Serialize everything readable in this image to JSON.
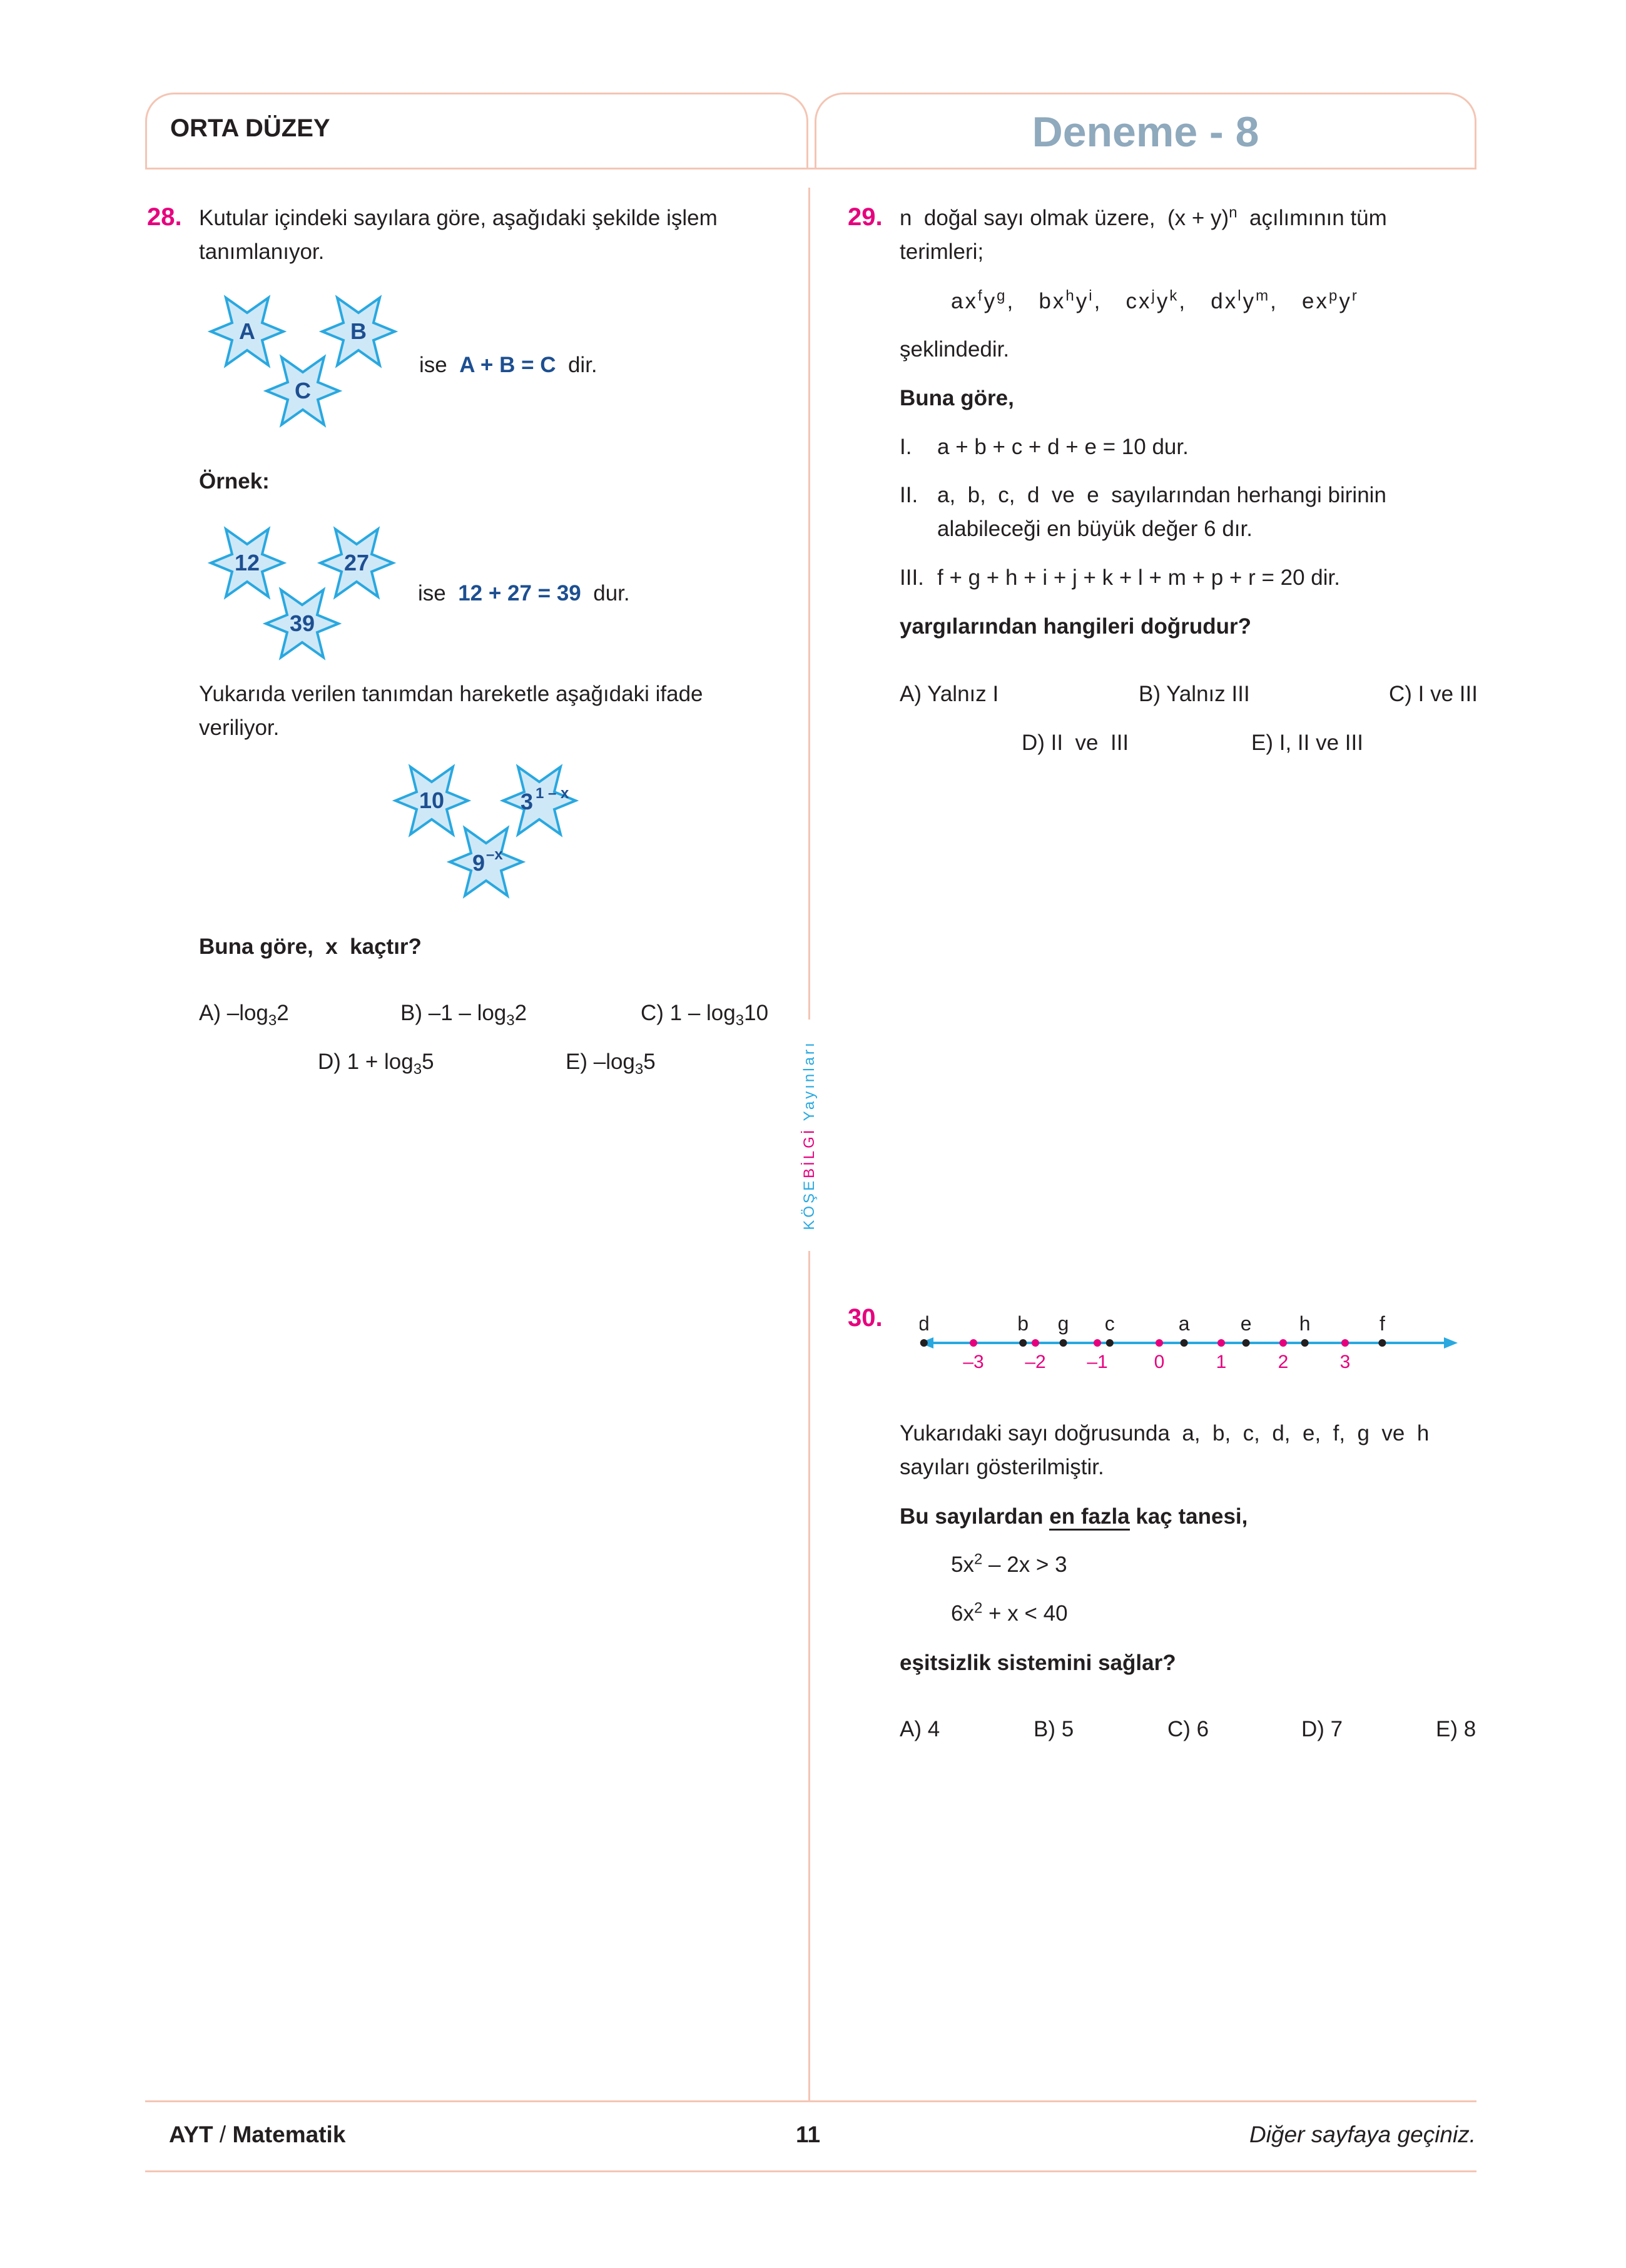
{
  "header": {
    "level": "ORTA DÜZEY",
    "title": "Deneme - 8"
  },
  "publisher": {
    "brand_a": "KÖŞE",
    "brand_b": "BİLGİ",
    "brand_c": " Yayınları"
  },
  "q28": {
    "number": "28.",
    "intro_line1": "Kutular içindeki sayılara göre, aşağıdaki şekilde işlem",
    "intro_line2": "tanımlanıyor.",
    "def_stars": [
      "A",
      "B",
      "C"
    ],
    "def_ise": "ise",
    "def_eq": "A + B = C",
    "def_dir": "dir.",
    "ornek": "Örnek:",
    "ex_stars": [
      "12",
      "27",
      "39"
    ],
    "ex_ise": "ise",
    "ex_eq": "12 + 27 = 39",
    "ex_dur": "dur.",
    "text_line1": "Yukarıda verilen tanımdan hareketle aşağıdaki ifade",
    "text_line2": "veriliyor.",
    "q_star_a": "10",
    "q_star_b_base": "3",
    "q_star_b_exp": "1 – x",
    "q_star_c_base": "9",
    "q_star_c_exp": "–x",
    "question": "Buna göre,  x  kaçtır?",
    "options": {
      "A_pre": "A) –log",
      "A_sub": "3",
      "A_post": "2",
      "B_pre": "B) –1 – log",
      "B_sub": "3",
      "B_post": "2",
      "C_pre": "C) 1 – log",
      "C_sub": "3",
      "C_post": "10",
      "D_pre": "D) 1 + log",
      "D_sub": "3",
      "D_post": "5",
      "E_pre": "E) –log",
      "E_sub": "3",
      "E_post": "5"
    }
  },
  "q29": {
    "number": "29.",
    "line1_pre": "n  doğal sayı olmak üzere,  (x + y)",
    "line1_sup": "n",
    "line1_post": "  açılımının tüm",
    "line2": "terimleri;",
    "terms": [
      {
        "c": "ax",
        "e1": "f",
        "v": "y",
        "e2": "g"
      },
      {
        "c": "bx",
        "e1": "h",
        "v": "y",
        "e2": "i"
      },
      {
        "c": "cx",
        "e1": "j",
        "v": "y",
        "e2": "k"
      },
      {
        "c": "dx",
        "e1": "l",
        "v": "y",
        "e2": "m"
      },
      {
        "c": "ex",
        "e1": "p",
        "v": "y",
        "e2": "r"
      }
    ],
    "seklinde": "şeklindedir.",
    "buna_gore": "Buna göre,",
    "s1_num": "I.",
    "s1": "a + b + c + d + e = 10  dur.",
    "s2_num": "II.",
    "s2_l1": "a,  b,  c,  d  ve  e  sayılarından herhangi birinin",
    "s2_l2": "alabileceği en büyük değer 6 dır.",
    "s3_num": "III.",
    "s3": "f + g + h + i + j + k + l + m + p + r = 20  dir.",
    "question": "yargılarından hangileri doğrudur?",
    "options": {
      "A": "A) Yalnız I",
      "B": "B) Yalnız III",
      "C": "C) I ve III",
      "D": "D) II  ve  III",
      "E": "E) I, II ve III"
    }
  },
  "q30": {
    "number": "30.",
    "numberline": {
      "letters": [
        {
          "label": "d",
          "value": -3.8
        },
        {
          "label": "b",
          "value": -2.2
        },
        {
          "label": "g",
          "value": -1.55
        },
        {
          "label": "c",
          "value": -0.8
        },
        {
          "label": "a",
          "value": 0.4
        },
        {
          "label": "e",
          "value": 1.4
        },
        {
          "label": "h",
          "value": 2.35
        },
        {
          "label": "f",
          "value": 3.6
        }
      ],
      "ticks": [
        "–3",
        "–2",
        "–1",
        "0",
        "1",
        "2",
        "3"
      ],
      "tick_values": [
        -3,
        -2,
        -1,
        0,
        1,
        2,
        3
      ],
      "axis_color": "#29a8e0",
      "tick_color": "#e6007e"
    },
    "text_line1": "Yukarıdaki sayı doğrusunda  a,  b,  c,  d,  e,  f,  g  ve  h",
    "text_line2": "sayıları gösterilmiştir.",
    "q_pre": "Bu sayılardan ",
    "q_ul": "en fazla",
    "q_post": " kaç tanesi,",
    "ineq1_a": "5x",
    "ineq1_sup": "2",
    "ineq1_b": " – 2x > 3",
    "ineq2_a": "6x",
    "ineq2_sup": "2",
    "ineq2_b": " + x < 40",
    "question": "eşitsizlik sistemini sağlar?",
    "options": {
      "A": "A) 4",
      "B": "B) 5",
      "C": "C) 6",
      "D": "D) 7",
      "E": "E) 8"
    }
  },
  "footer": {
    "left_a": "AYT",
    "left_sep": " / ",
    "left_b": "Matematik",
    "page": "11",
    "right": "Diğer sayfaya geçiniz."
  },
  "colors": {
    "accent": "#e6007e",
    "star_fill": "#cfe8f7",
    "star_stroke": "#29a8e0",
    "frame": "#f4c5b4",
    "title": "#8fa9bd",
    "blue_text": "#1d4f91"
  }
}
